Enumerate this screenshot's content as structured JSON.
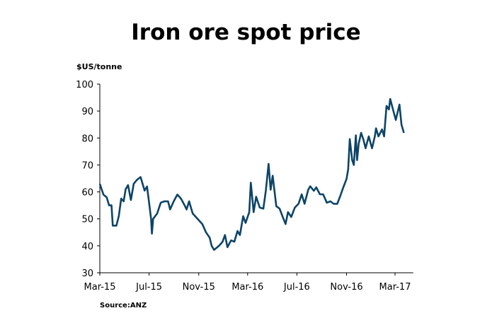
{
  "chart_data": {
    "type": "line",
    "title": "Iron ore spot price",
    "ylabel": "$US/tonne",
    "xlabel": "",
    "source": "Source:ANZ",
    "ylim": [
      30,
      100
    ],
    "yticks": [
      30,
      40,
      50,
      60,
      70,
      80,
      90,
      100
    ],
    "xticks": [
      {
        "date": "2015-03-01",
        "label": "Mar-15"
      },
      {
        "date": "2015-07-01",
        "label": "Jul-15"
      },
      {
        "date": "2015-11-01",
        "label": "Nov-15"
      },
      {
        "date": "2016-03-01",
        "label": "Mar-16"
      },
      {
        "date": "2016-07-01",
        "label": "Jul-16"
      },
      {
        "date": "2016-11-01",
        "label": "Nov-16"
      },
      {
        "date": "2017-03-01",
        "label": "Mar-17"
      }
    ],
    "xlim": [
      "2015-03-01",
      "2017-04-15"
    ],
    "grid": false,
    "line_color": "#0d4467",
    "series": [
      {
        "x": [
          "2015-03-01",
          "2015-03-10",
          "2015-03-18",
          "2015-03-24",
          "2015-03-30",
          "2015-04-02",
          "2015-04-11",
          "2015-04-17",
          "2015-04-23",
          "2015-04-29",
          "2015-05-04",
          "2015-05-10",
          "2015-05-17",
          "2015-05-24",
          "2015-06-01",
          "2015-06-10",
          "2015-06-20",
          "2015-06-26",
          "2015-07-01",
          "2015-07-06",
          "2015-07-08",
          "2015-07-11",
          "2015-07-21",
          "2015-07-30",
          "2015-08-08",
          "2015-08-17",
          "2015-08-22",
          "2015-08-31",
          "2015-09-09",
          "2015-09-18",
          "2015-09-27",
          "2015-10-02",
          "2015-10-08",
          "2015-10-17",
          "2015-11-01",
          "2015-11-10",
          "2015-11-19",
          "2015-11-28",
          "2015-12-03",
          "2015-12-09",
          "2015-12-21",
          "2015-12-30",
          "2016-01-05",
          "2016-01-11",
          "2016-01-20",
          "2016-01-28",
          "2016-02-05",
          "2016-02-11",
          "2016-02-19",
          "2016-02-25",
          "2016-03-05",
          "2016-03-09",
          "2016-03-16",
          "2016-03-22",
          "2016-03-31",
          "2016-04-09",
          "2016-04-15",
          "2016-04-22",
          "2016-04-27",
          "2016-05-02",
          "2016-05-11",
          "2016-05-19",
          "2016-05-28",
          "2016-06-03",
          "2016-06-09",
          "2016-06-17",
          "2016-06-26",
          "2016-07-05",
          "2016-07-13",
          "2016-07-20",
          "2016-07-29",
          "2016-08-03",
          "2016-08-12",
          "2016-08-18",
          "2016-08-27",
          "2016-09-04",
          "2016-09-13",
          "2016-09-22",
          "2016-09-30",
          "2016-10-09",
          "2016-10-17",
          "2016-10-23",
          "2016-11-01",
          "2016-11-05",
          "2016-11-09",
          "2016-11-15",
          "2016-11-19",
          "2016-11-24",
          "2016-11-27",
          "2016-12-01",
          "2016-12-07",
          "2016-12-13",
          "2016-12-18",
          "2016-12-26",
          "2017-01-03",
          "2017-01-10",
          "2017-01-13",
          "2017-01-19",
          "2017-01-28",
          "2017-02-02",
          "2017-02-08",
          "2017-02-14",
          "2017-02-17",
          "2017-02-23",
          "2017-03-03",
          "2017-03-12",
          "2017-03-17",
          "2017-03-23"
        ],
        "y": [
          63,
          59,
          58,
          55,
          55,
          47.5,
          47.5,
          51,
          57.5,
          56.5,
          61,
          62.5,
          57,
          63,
          64.5,
          65.5,
          60.5,
          62,
          56,
          50,
          44.5,
          50,
          52,
          56,
          56.5,
          56.5,
          53.5,
          56.5,
          59,
          57.5,
          55,
          53.5,
          56.5,
          52,
          49.5,
          48,
          45,
          43,
          40,
          38.5,
          40,
          41.5,
          44,
          39.5,
          42,
          41.5,
          45.5,
          44,
          51,
          48.5,
          52.5,
          63.4,
          52.5,
          58.2,
          54.2,
          53.8,
          60.4,
          70.4,
          60.8,
          66,
          54.7,
          53.8,
          50.3,
          48.1,
          52.5,
          50.7,
          54.2,
          55.6,
          59.1,
          55.6,
          60.8,
          62.1,
          60.4,
          61.7,
          59.1,
          59.1,
          56,
          56.5,
          55.6,
          55.6,
          58.7,
          61.3,
          64.8,
          68.3,
          79.6,
          71.8,
          70,
          81,
          71.8,
          77.9,
          81.9,
          79.3,
          76.2,
          80.6,
          76.2,
          80.6,
          83.6,
          80.6,
          83.2,
          80.6,
          91.9,
          90.6,
          94.5,
          91.1,
          86.7,
          92.4,
          85,
          81.9
        ]
      }
    ]
  }
}
